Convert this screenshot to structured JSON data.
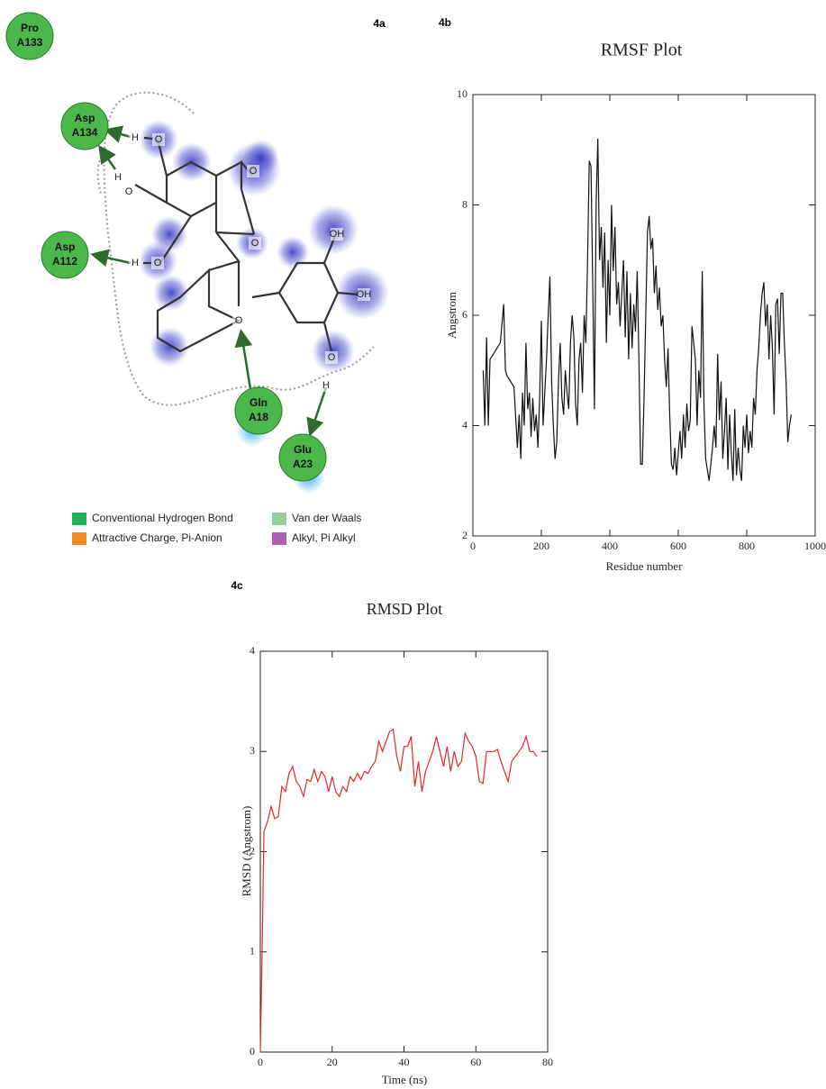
{
  "panels": {
    "a": "4a",
    "b": "4b",
    "c": "4c"
  },
  "diagram": {
    "residues": [
      {
        "name": "Pro",
        "chain": "A133"
      },
      {
        "name": "Asp",
        "chain": "A134"
      },
      {
        "name": "Asp",
        "chain": "A112"
      },
      {
        "name": "Gln",
        "chain": "A18"
      },
      {
        "name": "Glu",
        "chain": "A23"
      }
    ],
    "atoms": [
      "H",
      "O",
      "H",
      "O",
      "H",
      "O",
      "O",
      "O",
      "O",
      "OH",
      "OH",
      "O",
      "H"
    ],
    "legend": [
      {
        "label": "Conventional Hydrogen Bond",
        "color": "#1fb155"
      },
      {
        "label": "Attractive Charge, Pi-Anion",
        "color": "#f08a24"
      },
      {
        "label": "Van der Waals",
        "color": "#8fd19e"
      },
      {
        "label": "Alkyl, Pi Alkyl",
        "color": "#b060b0"
      }
    ]
  },
  "chart_data": [
    {
      "type": "line",
      "title": "RMSF Plot",
      "x_label": "Residue number",
      "y_label": "Angstrom",
      "color": "#111111",
      "xlim": [
        0,
        1000
      ],
      "xticks": [
        0,
        200,
        400,
        600,
        800,
        1000
      ],
      "ylim": [
        2,
        10
      ],
      "yticks": [
        2,
        4,
        6,
        8,
        10
      ],
      "x": [
        30,
        35,
        40,
        45,
        50,
        60,
        70,
        80,
        90,
        95,
        100,
        110,
        120,
        130,
        135,
        140,
        145,
        150,
        155,
        160,
        165,
        170,
        175,
        180,
        185,
        190,
        195,
        200,
        205,
        210,
        215,
        220,
        225,
        230,
        235,
        240,
        245,
        250,
        255,
        260,
        265,
        270,
        275,
        280,
        285,
        290,
        295,
        300,
        305,
        310,
        315,
        320,
        325,
        330,
        335,
        340,
        345,
        350,
        355,
        360,
        365,
        370,
        375,
        380,
        385,
        390,
        395,
        400,
        405,
        410,
        415,
        420,
        425,
        430,
        435,
        440,
        445,
        450,
        455,
        460,
        465,
        470,
        475,
        480,
        485,
        490,
        495,
        500,
        505,
        510,
        515,
        520,
        525,
        530,
        535,
        540,
        545,
        550,
        555,
        560,
        565,
        570,
        575,
        580,
        585,
        590,
        595,
        600,
        605,
        610,
        615,
        620,
        625,
        630,
        635,
        640,
        645,
        650,
        655,
        660,
        665,
        670,
        675,
        680,
        685,
        690,
        695,
        700,
        705,
        710,
        715,
        720,
        725,
        730,
        735,
        740,
        745,
        750,
        755,
        760,
        765,
        770,
        775,
        780,
        785,
        790,
        795,
        800,
        805,
        810,
        815,
        820,
        825,
        830,
        835,
        840,
        845,
        850,
        855,
        860,
        865,
        870,
        875,
        880,
        885,
        890,
        895,
        900,
        905,
        910,
        915,
        920,
        925,
        930
      ],
      "values": [
        5.0,
        4.0,
        5.6,
        4.0,
        5.2,
        5.3,
        5.4,
        5.5,
        6.2,
        5.0,
        4.9,
        4.8,
        4.7,
        3.6,
        4.2,
        3.4,
        4.6,
        4.0,
        5.5,
        4.3,
        4.6,
        3.8,
        4.5,
        3.9,
        4.2,
        3.6,
        4.5,
        5.9,
        4.0,
        4.6,
        5.2,
        6.0,
        6.7,
        4.8,
        4.0,
        3.4,
        3.7,
        4.8,
        5.5,
        4.5,
        4.2,
        5.0,
        4.6,
        4.3,
        5.5,
        6.0,
        5.6,
        4.4,
        4.0,
        5.2,
        5.5,
        4.6,
        6.0,
        5.5,
        7.0,
        8.8,
        8.7,
        6.6,
        4.3,
        8.0,
        9.2,
        7.0,
        7.6,
        6.5,
        7.5,
        5.5,
        7.0,
        6.0,
        8.0,
        6.8,
        7.6,
        6.2,
        6.6,
        5.8,
        6.4,
        7.0,
        5.6,
        6.8,
        5.2,
        6.4,
        5.4,
        6.2,
        5.7,
        6.8,
        5.2,
        3.3,
        3.3,
        4.5,
        6.0,
        7.5,
        7.8,
        7.2,
        7.4,
        6.4,
        6.9,
        6.1,
        6.5,
        5.8,
        6.0,
        5.2,
        4.7,
        5.4,
        4.2,
        3.3,
        3.2,
        3.6,
        3.1,
        3.5,
        3.9,
        3.4,
        4.2,
        3.6,
        4.4,
        3.9,
        4.1,
        5.8,
        5.5,
        5.2,
        4.0,
        5.0,
        4.5,
        6.8,
        4.4,
        3.4,
        3.2,
        3.0,
        3.3,
        3.6,
        4.0,
        3.6,
        5.3,
        4.1,
        4.8,
        3.4,
        3.9,
        4.5,
        3.2,
        4.2,
        3.5,
        3.0,
        4.3,
        3.1,
        3.6,
        3.2,
        3.0,
        4.0,
        3.6,
        4.2,
        3.5,
        3.9,
        3.6,
        4.5,
        4.2,
        5.0,
        5.4,
        6.0,
        6.4,
        6.6,
        5.8,
        6.2,
        5.2,
        6.0,
        5.4,
        4.2,
        6.2,
        6.3,
        5.3,
        6.4,
        6.4,
        5.5,
        4.8,
        3.7,
        4.0,
        4.2
      ]
    },
    {
      "type": "line",
      "title": "RMSD Plot",
      "x_label": "Time (ns)",
      "y_label": "RMSD (Angstrom)",
      "color": "#e8262b",
      "xlim": [
        0,
        80
      ],
      "xticks": [
        0,
        20,
        40,
        60,
        80
      ],
      "ylim": [
        0,
        4
      ],
      "yticks": [
        0,
        1,
        2,
        3,
        4
      ],
      "x": [
        0,
        0.5,
        1,
        2,
        3,
        4,
        5,
        6,
        7,
        8,
        9,
        10,
        11,
        12,
        13,
        14,
        15,
        16,
        17,
        18,
        19,
        20,
        21,
        22,
        23,
        24,
        25,
        26,
        27,
        28,
        29,
        30,
        31,
        32,
        33,
        34,
        35,
        36,
        37,
        38,
        39,
        40,
        41,
        42,
        43,
        44,
        45,
        46,
        47,
        48,
        49,
        50,
        51,
        52,
        53,
        54,
        55,
        56,
        57,
        58,
        59,
        60,
        61,
        62,
        63,
        64,
        65,
        66,
        67,
        68,
        69,
        70,
        71,
        72,
        73,
        74,
        75,
        76,
        77
      ],
      "values": [
        0,
        1.0,
        2.2,
        2.3,
        2.45,
        2.33,
        2.35,
        2.65,
        2.6,
        2.78,
        2.85,
        2.7,
        2.65,
        2.55,
        2.72,
        2.7,
        2.82,
        2.7,
        2.8,
        2.75,
        2.6,
        2.75,
        2.6,
        2.55,
        2.65,
        2.6,
        2.75,
        2.7,
        2.78,
        2.72,
        2.8,
        2.78,
        2.85,
        2.9,
        3.1,
        3.0,
        3.1,
        3.2,
        3.22,
        2.95,
        2.8,
        3.05,
        3.05,
        3.15,
        2.65,
        2.9,
        2.6,
        2.8,
        2.9,
        3.0,
        3.15,
        3.0,
        2.85,
        3.05,
        2.8,
        3.0,
        2.85,
        2.9,
        3.18,
        3.1,
        3.05,
        2.95,
        2.7,
        2.68,
        3.0,
        3.0,
        3.0,
        3.02,
        2.9,
        2.8,
        2.7,
        2.9,
        2.95,
        3.0,
        3.05,
        3.15,
        3.0,
        3.0,
        2.95
      ]
    }
  ]
}
